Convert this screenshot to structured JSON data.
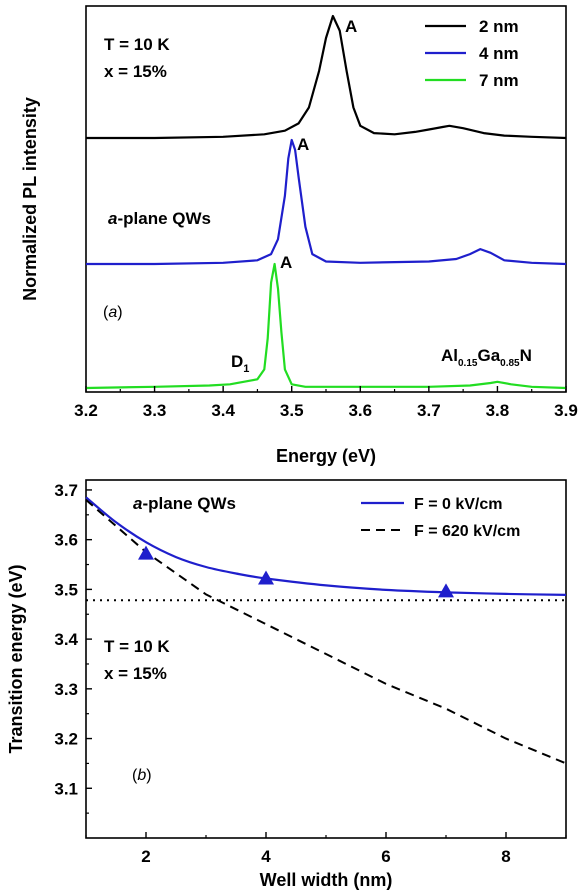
{
  "chart_data": [
    {
      "type": "line",
      "panel_label": "a",
      "xlabel": "Energy (eV)",
      "ylabel": "Normalized PL intensity",
      "xlim": [
        3.2,
        3.9
      ],
      "xticks": [
        "3.2",
        "3.3",
        "3.4",
        "3.5",
        "3.6",
        "3.7",
        "3.8",
        "3.9"
      ],
      "annotations": {
        "temperature": "T = 10 K",
        "composition": "x = 15%",
        "sample": "-plane QWs",
        "sample_italic": "a",
        "peak_label": "A",
        "defect_label": "D",
        "defect_sub": "1",
        "alloy_al": "Al",
        "alloy_al_sub": "0.15",
        "alloy_ga": "Ga",
        "alloy_ga_sub": "0.85",
        "alloy_n": "N"
      },
      "series": [
        {
          "name": "2 nm",
          "color": "#000000",
          "x": [
            3.2,
            3.3,
            3.4,
            3.46,
            3.49,
            3.51,
            3.525,
            3.54,
            3.55,
            3.56,
            3.57,
            3.58,
            3.59,
            3.6,
            3.62,
            3.65,
            3.68,
            3.7,
            3.72,
            3.73,
            3.75,
            3.78,
            3.81,
            3.85,
            3.9
          ],
          "y": [
            0.0,
            0.0,
            0.01,
            0.03,
            0.06,
            0.12,
            0.25,
            0.55,
            0.82,
            1.0,
            0.88,
            0.55,
            0.25,
            0.1,
            0.04,
            0.03,
            0.05,
            0.07,
            0.09,
            0.1,
            0.08,
            0.04,
            0.02,
            0.01,
            0.0
          ]
        },
        {
          "name": "4 nm",
          "color": "#1f1fcc",
          "x": [
            3.2,
            3.3,
            3.4,
            3.45,
            3.47,
            3.48,
            3.49,
            3.495,
            3.5,
            3.505,
            3.51,
            3.52,
            3.53,
            3.55,
            3.6,
            3.7,
            3.74,
            3.76,
            3.775,
            3.79,
            3.81,
            3.85,
            3.9
          ],
          "y": [
            0.0,
            0.0,
            0.01,
            0.03,
            0.08,
            0.2,
            0.55,
            0.85,
            1.0,
            0.92,
            0.7,
            0.3,
            0.08,
            0.02,
            0.01,
            0.02,
            0.04,
            0.08,
            0.12,
            0.09,
            0.03,
            0.01,
            0.0
          ]
        },
        {
          "name": "7 nm",
          "color": "#22dd22",
          "x": [
            3.2,
            3.3,
            3.38,
            3.41,
            3.43,
            3.45,
            3.46,
            3.465,
            3.47,
            3.475,
            3.48,
            3.485,
            3.49,
            3.5,
            3.52,
            3.6,
            3.7,
            3.76,
            3.79,
            3.8,
            3.82,
            3.85,
            3.9
          ],
          "y": [
            0.0,
            0.01,
            0.02,
            0.03,
            0.05,
            0.07,
            0.15,
            0.4,
            0.85,
            1.0,
            0.8,
            0.45,
            0.15,
            0.03,
            0.01,
            0.01,
            0.01,
            0.02,
            0.04,
            0.05,
            0.03,
            0.01,
            0.0
          ]
        }
      ]
    },
    {
      "type": "line",
      "panel_label": "b",
      "xlabel": "Well width (nm)",
      "ylabel": "Transition energy (eV)",
      "xlim": [
        1,
        9
      ],
      "ylim": [
        3.0,
        3.72
      ],
      "xticks": [
        "2",
        "4",
        "6",
        "8"
      ],
      "yticks": [
        "3.1",
        "3.2",
        "3.3",
        "3.4",
        "3.5",
        "3.6",
        "3.7"
      ],
      "annotations": {
        "sample": "-plane QWs",
        "sample_italic": "a",
        "temperature": "T = 10 K",
        "composition": "x = 15%"
      },
      "series": [
        {
          "name": "F = 0 kV/cm",
          "color": "#1f1fcc",
          "style": "solid",
          "x": [
            1,
            1.5,
            2,
            2.5,
            3,
            3.5,
            4,
            5,
            6,
            7,
            8,
            9
          ],
          "y": [
            3.685,
            3.635,
            3.595,
            3.565,
            3.545,
            3.532,
            3.522,
            3.508,
            3.499,
            3.494,
            3.491,
            3.489
          ]
        },
        {
          "name": "F = 620 kV/cm",
          "color": "#000000",
          "style": "dashed",
          "x": [
            1,
            2,
            3,
            4,
            5,
            6,
            7,
            8,
            9
          ],
          "y": [
            3.68,
            3.575,
            3.49,
            3.43,
            3.37,
            3.31,
            3.26,
            3.2,
            3.15
          ]
        },
        {
          "name": "",
          "color": "#000000",
          "style": "dotted",
          "x": [
            1,
            9
          ],
          "y": [
            3.478,
            3.478
          ]
        },
        {
          "name": "",
          "color": "#1f1fcc",
          "style": "markers",
          "marker": "triangle",
          "x": [
            2,
            4,
            7
          ],
          "y": [
            3.572,
            3.522,
            3.496
          ]
        }
      ]
    }
  ]
}
